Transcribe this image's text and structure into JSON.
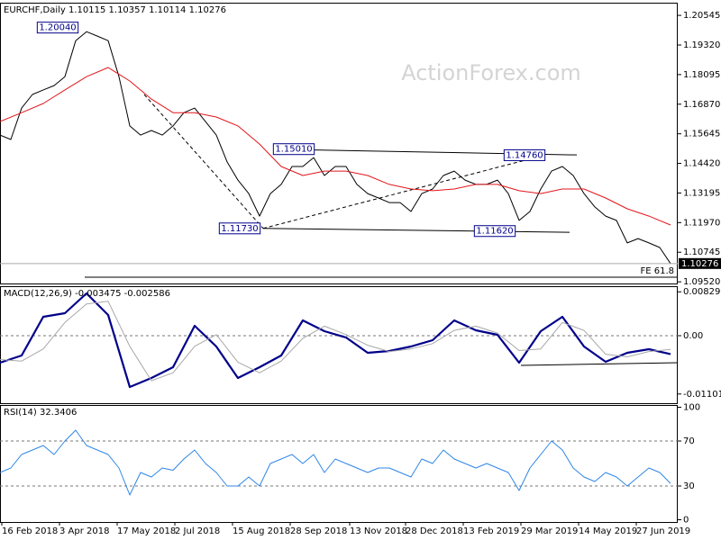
{
  "watermark": "ActionForex.com",
  "chart_data": [
    {
      "type": "line",
      "title": "EURCHF,Daily  1.10115 1.10357 1.10114 1.10276",
      "xlim": [
        0,
        376
      ],
      "ylim": [
        1.0945,
        1.2107
      ],
      "yticks": [
        1.20545,
        {
          "value": 1.1932,
          "label": "1.19320"
        },
        1.18095,
        {
          "value": 1.1687,
          "label": "1.16870"
        },
        1.15645,
        {
          "value": 1.1442,
          "label": "1.14420"
        },
        1.13195,
        {
          "value": 1.1197,
          "label": "1.11970"
        },
        1.10745,
        {
          "value": 1.0952,
          "label": "1.09520"
        }
      ],
      "last": 1.10276,
      "series": [
        {
          "name": "EURCHF",
          "color": "#000000",
          "x": [
            0,
            6,
            12,
            18,
            24,
            30,
            36,
            42,
            48,
            54,
            60,
            66,
            72,
            78,
            84,
            90,
            96,
            102,
            108,
            114,
            120,
            126,
            132,
            138,
            144,
            150,
            156,
            162,
            168,
            174,
            180,
            186,
            192,
            198,
            204,
            210,
            216,
            222,
            228,
            234,
            240,
            246,
            252,
            258,
            264,
            270,
            276,
            282,
            288,
            294,
            300,
            306,
            312,
            318,
            324,
            330,
            336,
            342,
            348,
            354,
            360,
            366,
            372
          ],
          "values": [
            1.1559,
            1.1541,
            1.1671,
            1.1727,
            1.1746,
            1.1764,
            1.1801,
            1.195,
            1.1987,
            1.1969,
            1.195,
            1.1801,
            1.1597,
            1.1559,
            1.1578,
            1.1559,
            1.1597,
            1.1652,
            1.1671,
            1.1615,
            1.1559,
            1.1448,
            1.1373,
            1.1317,
            1.1224,
            1.1317,
            1.1355,
            1.1429,
            1.1429,
            1.1466,
            1.1392,
            1.1429,
            1.1429,
            1.1355,
            1.1317,
            1.1299,
            1.128,
            1.128,
            1.1243,
            1.1317,
            1.1336,
            1.1392,
            1.141,
            1.1373,
            1.1355,
            1.1355,
            1.1373,
            1.1317,
            1.1206,
            1.1243,
            1.1336,
            1.141,
            1.1429,
            1.1392,
            1.1317,
            1.1262,
            1.1224,
            1.1206,
            1.1113,
            1.1131,
            1.1113,
            1.1094,
            1.10276
          ]
        },
        {
          "name": "MA",
          "color": "#e3161b",
          "x": [
            0,
            12,
            24,
            36,
            48,
            60,
            72,
            84,
            96,
            108,
            120,
            132,
            144,
            156,
            168,
            180,
            192,
            204,
            216,
            228,
            240,
            252,
            264,
            276,
            288,
            300,
            312,
            324,
            336,
            348,
            360,
            372
          ],
          "values": [
            1.1615,
            1.1652,
            1.169,
            1.1746,
            1.1801,
            1.1839,
            1.1783,
            1.1708,
            1.1652,
            1.1652,
            1.1634,
            1.1597,
            1.1522,
            1.1429,
            1.1392,
            1.141,
            1.141,
            1.1392,
            1.1355,
            1.1336,
            1.1329,
            1.1336,
            1.1355,
            1.1355,
            1.1329,
            1.1317,
            1.1336,
            1.1336,
            1.1299,
            1.1254,
            1.1224,
            1.1187
          ]
        }
      ],
      "lines": [
        {
          "style": "solid",
          "x": [
            152,
            320
          ],
          "y": [
            1.1501,
            1.1477
          ]
        },
        {
          "style": "solid",
          "x": [
            146,
            316
          ],
          "y": [
            1.1173,
            1.1157
          ]
        },
        {
          "style": "dashed",
          "x": [
            80,
            146
          ],
          "y": [
            1.1727,
            1.1173
          ]
        },
        {
          "style": "dashed",
          "x": [
            146,
            302
          ],
          "y": [
            1.1173,
            1.1476
          ]
        },
        {
          "style": "solid",
          "label": "FE 61.8",
          "x": [
            47,
            376
          ],
          "y": [
            1.0971,
            1.0971
          ]
        }
      ],
      "annotations": [
        {
          "value": 1.2004,
          "label": "1.20040",
          "x": 32
        },
        {
          "value": 1.1501,
          "label": "1.15010",
          "x": 163
        },
        {
          "value": 1.1476,
          "label": "1.14760",
          "x": 291
        },
        {
          "value": 1.1173,
          "label": "1.11730",
          "x": 133
        },
        {
          "value": 1.1162,
          "label": "1.11620",
          "x": 274.5
        }
      ]
    },
    {
      "type": "line",
      "title": "MACD(12,26,9) -0.003475 -0.002586",
      "xlim": [
        0,
        376
      ],
      "ylim": [
        -0.01275,
        0.00935
      ],
      "yticks": [
        0.008292,
        {
          "value": 0,
          "label": "0.00"
        },
        -0.011015
      ],
      "ref_lines": [
        0
      ],
      "series": [
        {
          "name": "MACD",
          "color": "#00008b",
          "width": 2.2,
          "x": [
            0,
            12,
            24,
            36,
            48,
            60,
            72,
            84,
            96,
            108,
            120,
            132,
            144,
            156,
            168,
            180,
            192,
            204,
            216,
            228,
            240,
            252,
            264,
            276,
            288,
            300,
            312,
            324,
            336,
            348,
            360,
            372
          ],
          "values": [
            -0.0051,
            -0.00374,
            0.00357,
            0.00425,
            0.00799,
            0.00391,
            -0.00969,
            -0.00799,
            -0.00595,
            0.00187,
            -0.00204,
            -0.00799,
            -0.00595,
            -0.00374,
            0.00289,
            0.00085,
            -0.00034,
            -0.00323,
            -0.00289,
            -0.00204,
            -0.00085,
            0.00289,
            0.00102,
            0.00017,
            -0.0051,
            0.00085,
            0.00357,
            -0.00204,
            -0.00493,
            -0.00323,
            -0.00255,
            -0.003475
          ]
        },
        {
          "name": "Signal",
          "color": "#a8a8a8",
          "width": 1,
          "x": [
            0,
            12,
            24,
            36,
            48,
            60,
            72,
            84,
            96,
            108,
            120,
            132,
            144,
            156,
            168,
            180,
            192,
            204,
            216,
            228,
            240,
            252,
            264,
            276,
            288,
            300,
            312,
            324,
            336,
            348,
            360,
            372
          ],
          "values": [
            -0.0045,
            -0.0048,
            -0.0025,
            0.0025,
            0.006,
            0.0065,
            -0.002,
            -0.0085,
            -0.007,
            -0.002,
            0.0002,
            -0.005,
            -0.007,
            -0.0048,
            -0.0005,
            0.0018,
            0.0002,
            -0.0018,
            -0.003,
            -0.0025,
            -0.0015,
            0.001,
            0.0018,
            0.0005,
            -0.0028,
            -0.0025,
            0.0025,
            0.001,
            -0.0035,
            -0.004,
            -0.003,
            -0.002586
          ]
        }
      ],
      "lines": [
        {
          "style": "solid",
          "x": [
            289,
            376
          ],
          "y": [
            -0.0056,
            -0.0051
          ]
        }
      ]
    },
    {
      "type": "line",
      "title": "RSI(14) 32.3406",
      "xlim": [
        0,
        376
      ],
      "ylim": [
        -2,
        102
      ],
      "yticks": [
        100,
        70,
        30,
        0
      ],
      "ref_lines": [
        70,
        30
      ],
      "xticks": [
        {
          "value": 1,
          "label": "16 Feb 2018"
        },
        {
          "value": 33,
          "label": "3 Apr 2018"
        },
        {
          "value": 65,
          "label": "17 May 2018"
        },
        {
          "value": 97,
          "label": "2 Jul 2018"
        },
        {
          "value": 129,
          "label": "15 Aug 2018"
        },
        {
          "value": 161,
          "label": "28 Sep 2018"
        },
        {
          "value": 194,
          "label": "13 Nov 2018"
        },
        {
          "value": 225,
          "label": "28 Dec 2018"
        },
        {
          "value": 257,
          "label": "13 Feb 2019"
        },
        {
          "value": 289,
          "label": "29 Mar 2019"
        },
        {
          "value": 321,
          "label": "14 May 2019"
        },
        {
          "value": 353,
          "label": "27 Jun 2019"
        }
      ],
      "series": [
        {
          "name": "RSI",
          "color": "#2f86e6",
          "width": 1,
          "x": [
            0,
            6,
            12,
            18,
            24,
            30,
            36,
            42,
            48,
            54,
            60,
            66,
            72,
            78,
            84,
            90,
            96,
            102,
            108,
            114,
            120,
            126,
            132,
            138,
            144,
            150,
            156,
            162,
            168,
            174,
            180,
            186,
            192,
            198,
            204,
            210,
            216,
            222,
            228,
            234,
            240,
            246,
            252,
            258,
            264,
            270,
            276,
            282,
            288,
            294,
            300,
            306,
            312,
            318,
            324,
            330,
            336,
            342,
            348,
            354,
            360,
            366,
            372
          ],
          "values": [
            42,
            46,
            58,
            62,
            66,
            58,
            70,
            79.6,
            66,
            62,
            58,
            46,
            22,
            42,
            38,
            46,
            44,
            54,
            62,
            50,
            42,
            30,
            30,
            38,
            30,
            50,
            54,
            58,
            50,
            58,
            42,
            54,
            50,
            46,
            42,
            46,
            46,
            42,
            38,
            54,
            50,
            62,
            54,
            50,
            46,
            50,
            46,
            42,
            26,
            46,
            58,
            70,
            62,
            46,
            38,
            34,
            42,
            38,
            30,
            38,
            46,
            42,
            32.3406
          ]
        }
      ]
    }
  ]
}
